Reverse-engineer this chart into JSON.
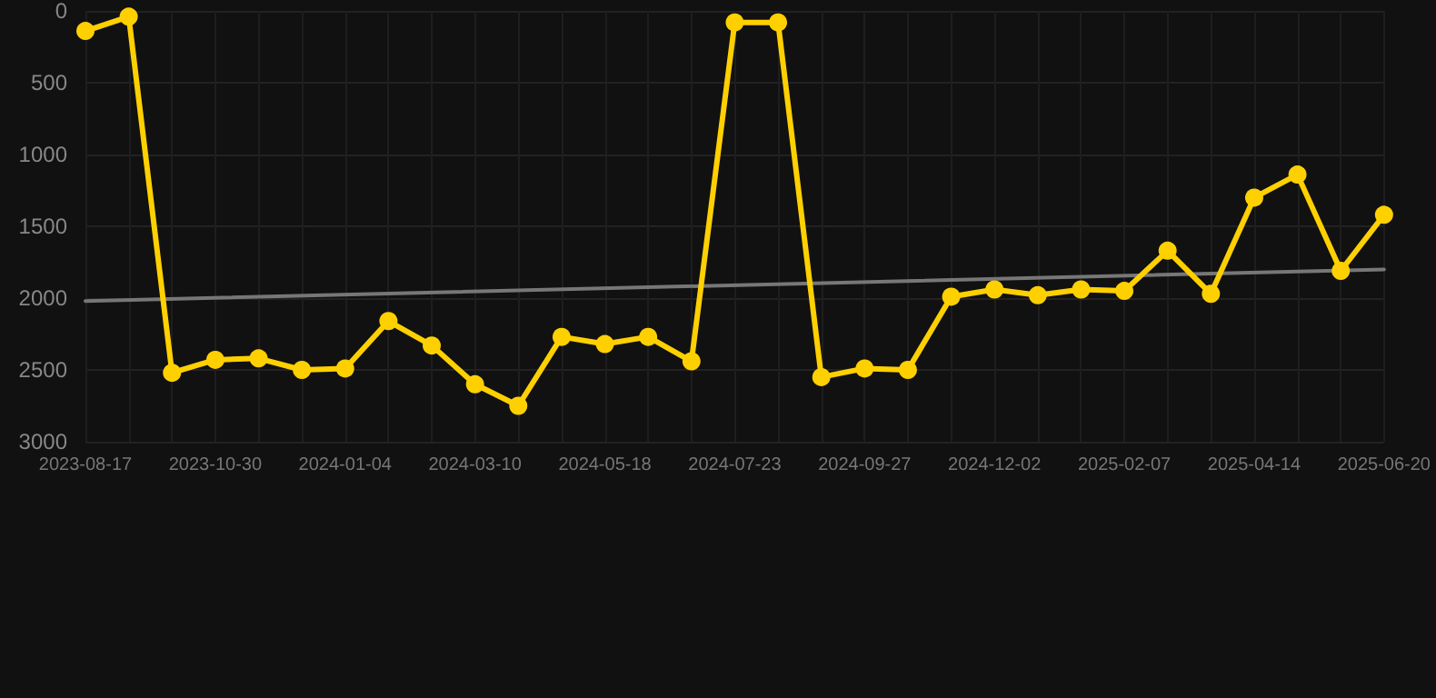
{
  "chart_data": {
    "type": "line",
    "categories": [
      "2023-08-17",
      null,
      null,
      "2023-10-30",
      null,
      null,
      "2024-01-04",
      null,
      null,
      "2024-03-10",
      null,
      null,
      "2024-05-18",
      null,
      null,
      "2024-07-23",
      null,
      null,
      "2024-09-27",
      null,
      null,
      "2024-12-02",
      null,
      null,
      "2025-02-07",
      null,
      null,
      "2025-04-14",
      null,
      null,
      "2025-06-20"
    ],
    "series": [
      {
        "color": "#ffd000",
        "values": [
          140,
          40,
          2520,
          2430,
          2420,
          2500,
          2490,
          2160,
          2330,
          2600,
          2750,
          2270,
          2320,
          2270,
          2440,
          80,
          80,
          2550,
          2490,
          2500,
          1990,
          1940,
          1980,
          1940,
          1950,
          1670,
          1970,
          1300,
          1140,
          1810,
          1420
        ]
      },
      {
        "color": "#777777",
        "values": [
          2020,
          null,
          null,
          null,
          null,
          null,
          null,
          null,
          null,
          null,
          null,
          null,
          null,
          null,
          null,
          null,
          null,
          null,
          null,
          null,
          null,
          null,
          null,
          null,
          null,
          null,
          null,
          null,
          null,
          null,
          1800
        ],
        "marker": "none"
      }
    ],
    "ylim": [
      3000,
      0
    ],
    "yticks": [
      0,
      500,
      1000,
      1500,
      2000,
      2500,
      3000
    ],
    "grid": true,
    "marker": "circle",
    "line_style": "solid"
  }
}
